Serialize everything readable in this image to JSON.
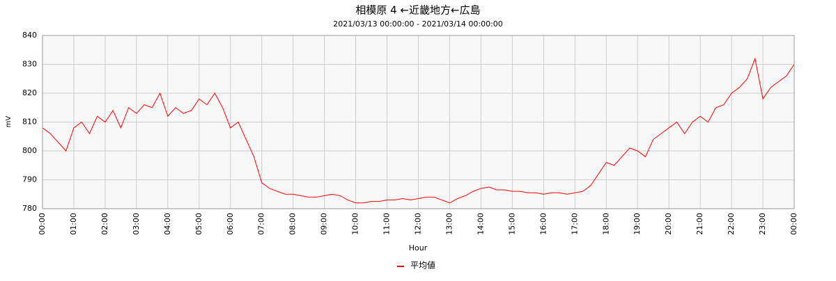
{
  "chart_data": {
    "type": "line",
    "title": "相模原 4 ←近畿地方←広島",
    "subtitle": "2021/03/13 00:00:00 - 2021/03/14 00:00:00",
    "x_label": "Hour",
    "y_label": "mV",
    "xlim": [
      0,
      24
    ],
    "xticks": [
      {
        "value": 0,
        "label": "00:00"
      },
      {
        "value": 1,
        "label": "01:00"
      },
      {
        "value": 2,
        "label": "02:00"
      },
      {
        "value": 3,
        "label": "03:00"
      },
      {
        "value": 4,
        "label": "04:00"
      },
      {
        "value": 5,
        "label": "05:00"
      },
      {
        "value": 6,
        "label": "06:00"
      },
      {
        "value": 7,
        "label": "07:00"
      },
      {
        "value": 8,
        "label": "08:00"
      },
      {
        "value": 9,
        "label": "09:00"
      },
      {
        "value": 10,
        "label": "10:00"
      },
      {
        "value": 11,
        "label": "11:00"
      },
      {
        "value": 12,
        "label": "12:00"
      },
      {
        "value": 13,
        "label": "13:00"
      },
      {
        "value": 14,
        "label": "14:00"
      },
      {
        "value": 15,
        "label": "15:00"
      },
      {
        "value": 16,
        "label": "16:00"
      },
      {
        "value": 17,
        "label": "17:00"
      },
      {
        "value": 18,
        "label": "18:00"
      },
      {
        "value": 19,
        "label": "19:00"
      },
      {
        "value": 20,
        "label": "20:00"
      },
      {
        "value": 21,
        "label": "21:00"
      },
      {
        "value": 22,
        "label": "22:00"
      },
      {
        "value": 23,
        "label": "23:00"
      },
      {
        "value": 24,
        "label": "00:00"
      }
    ],
    "ylim": [
      780,
      840
    ],
    "yticks": [
      780,
      790,
      800,
      810,
      820,
      830,
      840
    ],
    "grid": true,
    "x": [
      0,
      0.25,
      0.5,
      0.75,
      1,
      1.25,
      1.5,
      1.75,
      2,
      2.25,
      2.5,
      2.75,
      3,
      3.25,
      3.5,
      3.75,
      4,
      4.25,
      4.5,
      4.75,
      5,
      5.25,
      5.5,
      5.75,
      6,
      6.25,
      6.5,
      6.75,
      7,
      7.25,
      7.5,
      7.75,
      8,
      8.25,
      8.5,
      8.75,
      9,
      9.25,
      9.5,
      9.75,
      10,
      10.25,
      10.5,
      10.75,
      11,
      11.25,
      11.5,
      11.75,
      12,
      12.25,
      12.5,
      12.75,
      13,
      13.25,
      13.5,
      13.75,
      14,
      14.25,
      14.5,
      14.75,
      15,
      15.25,
      15.5,
      15.75,
      16,
      16.25,
      16.5,
      16.75,
      17,
      17.25,
      17.5,
      17.75,
      18,
      18.25,
      18.5,
      18.75,
      19,
      19.25,
      19.5,
      19.75,
      20,
      20.25,
      20.5,
      20.75,
      21,
      21.25,
      21.5,
      21.75,
      22,
      22.25,
      22.5,
      22.75,
      23,
      23.25,
      23.5,
      23.75,
      24
    ],
    "series": [
      {
        "name": "平均値",
        "color": "#ff0000",
        "values": [
          808,
          806,
          803,
          800,
          808,
          810,
          806,
          812,
          810,
          814,
          808,
          815,
          813,
          816,
          815,
          820,
          812,
          815,
          813,
          814,
          818,
          816,
          820,
          815,
          808,
          810,
          804,
          798,
          789,
          787,
          786,
          785,
          785,
          784.5,
          784,
          784,
          784.5,
          785,
          784.5,
          783,
          782,
          782,
          782.5,
          782.5,
          783,
          783,
          783.5,
          783,
          783.5,
          784,
          784,
          783,
          782,
          783.5,
          784.5,
          786,
          787,
          787.5,
          786.5,
          786.5,
          786,
          786,
          785.5,
          785.5,
          785,
          785.5,
          785.5,
          785,
          785.5,
          786,
          788,
          792,
          796,
          795,
          798,
          801,
          800,
          798,
          804,
          806,
          808,
          810,
          806,
          810,
          812,
          810,
          815,
          816,
          820,
          822,
          825,
          832,
          818,
          822,
          824,
          826,
          830
        ]
      }
    ]
  }
}
